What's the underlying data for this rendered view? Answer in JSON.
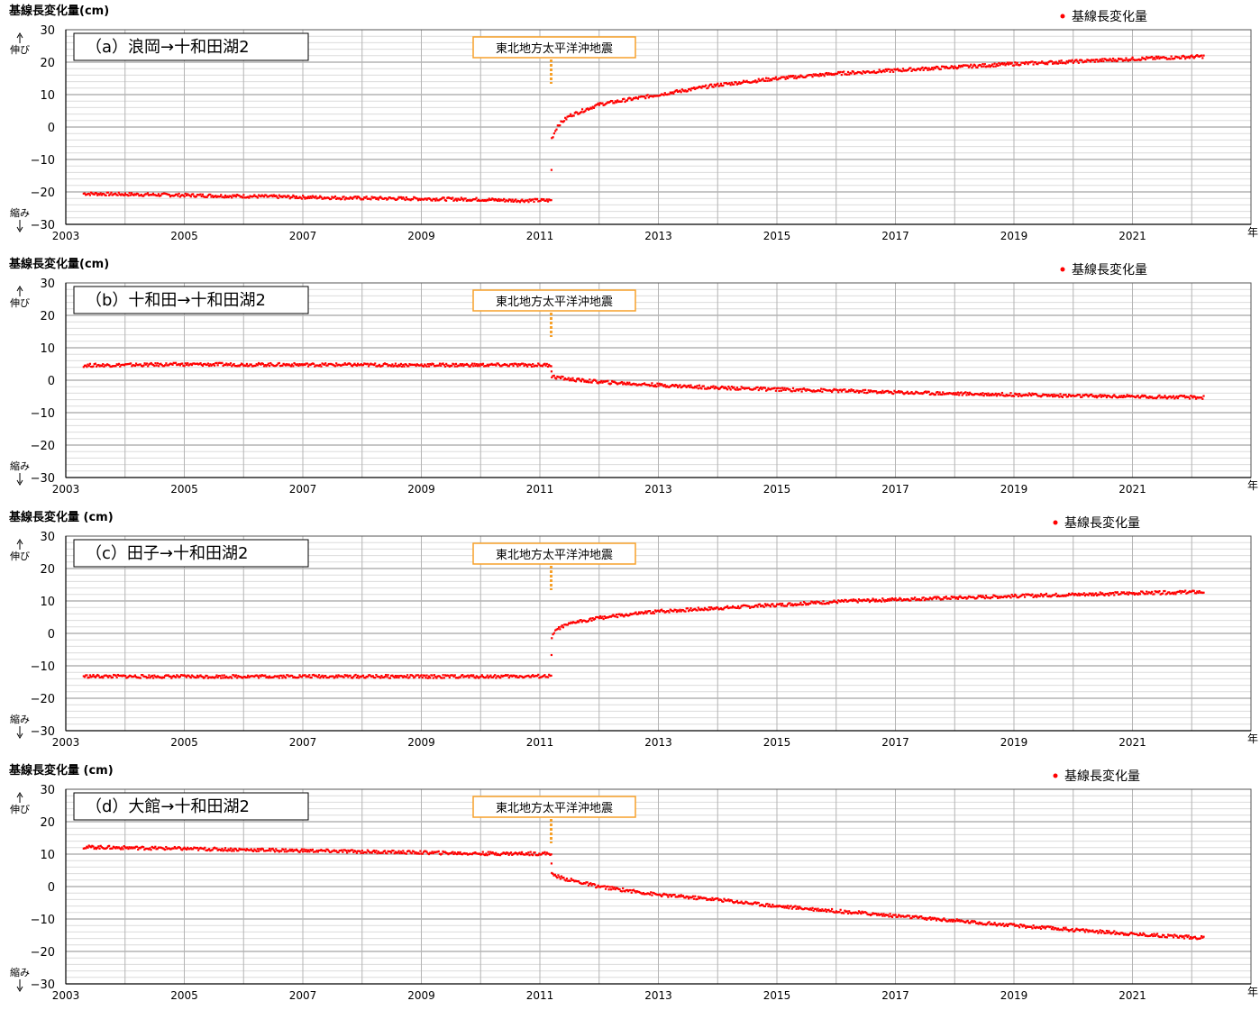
{
  "common": {
    "x_unit": "年",
    "extension_label": "伸び",
    "contraction_label": "縮み",
    "legend_label": "基線長変化量",
    "earthquake_label": "東北地方太平洋沖地震",
    "series_color": "#ff0000",
    "earthquake_color": "#f7a12a"
  },
  "chart_data": [
    {
      "type": "scatter",
      "ylabel": "基線長変化量(cm)",
      "title": "（a）浪岡→十和田湖2",
      "xlim": [
        2003,
        2023
      ],
      "ylim": [
        -30,
        30
      ],
      "xticks": [
        2003,
        2005,
        2007,
        2009,
        2011,
        2013,
        2015,
        2017,
        2019,
        2021
      ],
      "xtick_labels": [
        "2003",
        "2005",
        "2007",
        "2009",
        "2011",
        "2013",
        "2015",
        "2017",
        "2019",
        "2021"
      ],
      "yticks": [
        30,
        20,
        10,
        0,
        -10,
        -20,
        -30
      ],
      "ytick_labels": [
        "30",
        "20",
        "10",
        "0",
        "−10",
        "−20",
        "−30"
      ],
      "grid": true,
      "legend": "top-right",
      "earthquake_x": 2011.19,
      "series": [
        {
          "name": "基線長変化量",
          "x": [
            2003.3,
            2004,
            2005,
            2006,
            2007,
            2008,
            2009,
            2010,
            2010.5,
            2011.19,
            2011.2,
            2011.3,
            2011.5,
            2012,
            2013,
            2014,
            2015,
            2016,
            2017,
            2018,
            2019,
            2020,
            2021,
            2022.2
          ],
          "y": [
            -20.5,
            -20.7,
            -21,
            -21.3,
            -21.6,
            -21.9,
            -22.1,
            -22.3,
            -22.6,
            -22.6,
            -3.5,
            0.5,
            3.5,
            7,
            10,
            13,
            15,
            16.5,
            17.5,
            18.5,
            19.5,
            20.2,
            21,
            21.8
          ]
        }
      ]
    },
    {
      "type": "scatter",
      "ylabel": "基線長変化量(cm)",
      "title": "（b）十和田→十和田湖2",
      "xlim": [
        2003,
        2023
      ],
      "ylim": [
        -30,
        30
      ],
      "xticks": [
        2003,
        2005,
        2007,
        2009,
        2011,
        2013,
        2015,
        2017,
        2019,
        2021
      ],
      "xtick_labels": [
        "2003",
        "2005",
        "2007",
        "2009",
        "2011",
        "2013",
        "2015",
        "2017",
        "2019",
        "2021"
      ],
      "yticks": [
        30,
        20,
        10,
        0,
        -10,
        -20,
        -30
      ],
      "ytick_labels": [
        "30",
        "20",
        "10",
        "0",
        "−10",
        "−20",
        "−30"
      ],
      "grid": true,
      "legend": "top-right",
      "earthquake_x": 2011.19,
      "series": [
        {
          "name": "基線長変化量",
          "x": [
            2003.3,
            2005,
            2007,
            2009,
            2011.19,
            2011.2,
            2011.5,
            2012,
            2013,
            2014,
            2015,
            2016,
            2017,
            2018,
            2019,
            2020,
            2021,
            2022.2
          ],
          "y": [
            4.6,
            4.9,
            4.8,
            4.7,
            4.7,
            1.2,
            0.3,
            -0.5,
            -1.5,
            -2.3,
            -2.8,
            -3.2,
            -3.7,
            -4.1,
            -4.4,
            -4.8,
            -5.0,
            -5.3
          ]
        }
      ]
    },
    {
      "type": "scatter",
      "ylabel": "基線長変化量 (cm)",
      "title": "（c）田子→十和田湖2",
      "xlim": [
        2003,
        2023
      ],
      "ylim": [
        -30,
        30
      ],
      "xticks": [
        2003,
        2005,
        2007,
        2009,
        2011,
        2013,
        2015,
        2017,
        2019,
        2021
      ],
      "xtick_labels": [
        "2003",
        "2005",
        "2007",
        "2009",
        "2011",
        "2013",
        "2015",
        "2017",
        "2019",
        "2021"
      ],
      "yticks": [
        30,
        20,
        10,
        0,
        -10,
        -20,
        -30
      ],
      "ytick_labels": [
        "30",
        "20",
        "10",
        "0",
        "−10",
        "−20",
        "−30"
      ],
      "grid": true,
      "legend": "top-right",
      "earthquake_x": 2011.19,
      "series": [
        {
          "name": "基線長変化量",
          "x": [
            2003.3,
            2005,
            2007,
            2009,
            2011.19,
            2011.2,
            2011.3,
            2011.6,
            2012,
            2013,
            2014,
            2015,
            2016,
            2017,
            2018,
            2019,
            2020,
            2021,
            2022.2
          ],
          "y": [
            -13.2,
            -13.3,
            -13.2,
            -13.3,
            -13.2,
            -1,
            1.5,
            3.5,
            4.8,
            6.8,
            7.8,
            8.8,
            9.8,
            10.5,
            11,
            11.5,
            12,
            12.4,
            12.8
          ]
        }
      ]
    },
    {
      "type": "scatter",
      "ylabel": "基線長変化量 (cm)",
      "title": "（d）大館→十和田湖2",
      "xlim": [
        2003,
        2023
      ],
      "ylim": [
        -30,
        30
      ],
      "xticks": [
        2003,
        2005,
        2007,
        2009,
        2011,
        2013,
        2015,
        2017,
        2019,
        2021
      ],
      "xtick_labels": [
        "2003",
        "2005",
        "2007",
        "2009",
        "2011",
        "2013",
        "2015",
        "2017",
        "2019",
        "2021"
      ],
      "yticks": [
        30,
        20,
        10,
        0,
        -10,
        -20,
        -30
      ],
      "ytick_labels": [
        "30",
        "20",
        "10",
        "0",
        "−10",
        "−20",
        "−30"
      ],
      "grid": true,
      "legend": "top-right",
      "earthquake_x": 2011.19,
      "series": [
        {
          "name": "基線長変化量",
          "x": [
            2003.3,
            2004,
            2005,
            2006,
            2007,
            2008,
            2009,
            2010,
            2011.19,
            2011.2,
            2011.4,
            2012,
            2013,
            2014,
            2015,
            2016,
            2017,
            2018,
            2019,
            2020,
            2021,
            2022.2
          ],
          "y": [
            12.2,
            12,
            11.7,
            11.4,
            11.1,
            10.8,
            10.5,
            10.2,
            10.2,
            3.8,
            2.5,
            0,
            -2.5,
            -4,
            -6,
            -7.5,
            -9,
            -10.5,
            -12,
            -13.3,
            -14.6,
            -15.8
          ]
        }
      ]
    }
  ]
}
